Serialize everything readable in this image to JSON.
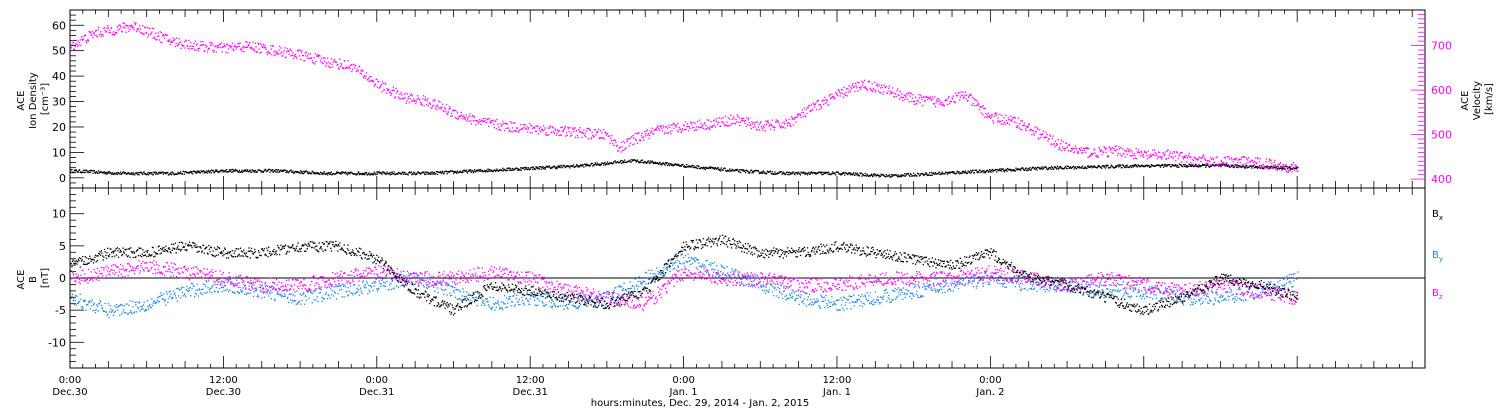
{
  "chart_data": [
    {
      "type": "scatter",
      "panel": "top",
      "ylabel_left": [
        "ACE",
        "Ion Density",
        "[cm⁻³]"
      ],
      "ylabel_right": [
        "ACE",
        "Velocity",
        "[km/s]"
      ],
      "ylim_left": [
        -4,
        66
      ],
      "ylim_right": [
        380,
        780
      ],
      "yticks_left": [
        0,
        10,
        20,
        30,
        40,
        50,
        60
      ],
      "yticks_right": [
        400,
        500,
        600,
        700
      ],
      "grid": false,
      "series": [
        {
          "axis": "left",
          "color": "#000000",
          "x_hours": [
            0,
            4,
            8,
            12,
            16,
            20,
            24,
            28,
            32,
            36,
            40,
            44,
            48,
            52,
            56,
            60,
            64,
            68,
            72,
            76,
            84,
            90,
            96
          ],
          "values": [
            3,
            2,
            2,
            3,
            3,
            2,
            2,
            2,
            3,
            4,
            5,
            7,
            5,
            3,
            2,
            2,
            1,
            2,
            3,
            4,
            5,
            5,
            4
          ]
        },
        {
          "axis": "right",
          "color": "#ff00ff",
          "x_hours": [
            0,
            2,
            5,
            8,
            10,
            12,
            14,
            16,
            18,
            20,
            22,
            24,
            26,
            28,
            30,
            32,
            34,
            36,
            38,
            40,
            42,
            43,
            44,
            46,
            48,
            50,
            52,
            54,
            56,
            58,
            60,
            62,
            64,
            66,
            68,
            70,
            72,
            74,
            76,
            78,
            80,
            82,
            84,
            86,
            88,
            90,
            92,
            94,
            96
          ],
          "values": [
            700,
            730,
            745,
            710,
            700,
            695,
            700,
            690,
            680,
            665,
            655,
            615,
            585,
            575,
            550,
            530,
            520,
            515,
            510,
            505,
            500,
            470,
            490,
            510,
            520,
            525,
            535,
            520,
            525,
            560,
            590,
            615,
            600,
            580,
            575,
            590,
            540,
            530,
            500,
            470,
            460,
            465,
            455,
            455,
            445,
            440,
            440,
            435,
            425
          ]
        }
      ]
    },
    {
      "type": "scatter",
      "panel": "bottom",
      "ylabel": [
        "ACE",
        "B",
        "[nT]"
      ],
      "ylim": [
        -14,
        14
      ],
      "yticks": [
        -10,
        -5,
        0,
        5,
        10
      ],
      "zero_line": true,
      "legend": "right",
      "legend_items": [
        {
          "label": "B",
          "sub": "x",
          "color": "#000000"
        },
        {
          "label": "B",
          "sub": "y",
          "color": "#1e88e5"
        },
        {
          "label": "B",
          "sub": "z",
          "color": "#ff00ff"
        }
      ],
      "series": [
        {
          "name": "Bx",
          "color": "#000000",
          "x_hours": [
            0,
            3,
            6,
            9,
            12,
            15,
            18,
            21,
            24,
            27,
            30,
            33,
            36,
            39,
            42,
            45,
            48,
            51,
            54,
            57,
            60,
            63,
            66,
            69,
            72,
            75,
            78,
            81,
            84,
            87,
            90,
            93,
            96
          ],
          "values": [
            2,
            4,
            4,
            5,
            4,
            4,
            5,
            5,
            3,
            -2,
            -5,
            -1,
            -2,
            -3,
            -4,
            -2,
            5,
            6,
            4,
            4,
            5,
            4,
            3,
            2,
            4,
            0,
            -1,
            -3,
            -5,
            -3,
            0,
            -1,
            -3
          ]
        },
        {
          "name": "By",
          "color": "#1e88e5",
          "x_hours": [
            0,
            3,
            6,
            9,
            12,
            15,
            18,
            21,
            24,
            27,
            30,
            33,
            36,
            39,
            42,
            45,
            48,
            51,
            54,
            57,
            60,
            63,
            66,
            69,
            72,
            75,
            78,
            81,
            84,
            87,
            90,
            93,
            96
          ],
          "values": [
            -3,
            -5,
            -4,
            -2,
            -1,
            -2,
            -3,
            -2,
            -1,
            0,
            -2,
            -4,
            -3,
            -4,
            -3,
            0,
            3,
            1,
            -1,
            -3,
            -4,
            -3,
            -2,
            -1,
            0,
            -1,
            -1,
            -2,
            -2,
            -3,
            -3,
            -2,
            0
          ]
        },
        {
          "name": "Bz",
          "color": "#ff00ff",
          "x_hours": [
            0,
            3,
            6,
            9,
            12,
            15,
            18,
            21,
            24,
            27,
            30,
            33,
            36,
            39,
            42,
            45,
            48,
            51,
            54,
            57,
            60,
            63,
            66,
            69,
            72,
            75,
            78,
            81,
            84,
            87,
            90,
            93,
            96
          ],
          "values": [
            0,
            1,
            2,
            1,
            0,
            -1,
            -1,
            0,
            1,
            0,
            0,
            1,
            0,
            -2,
            -3,
            -4,
            1,
            0,
            0,
            -1,
            -1,
            0,
            0,
            0,
            1,
            0,
            -1,
            0,
            -1,
            -2,
            -1,
            -2,
            -3
          ]
        }
      ]
    }
  ],
  "x_axis": {
    "label": "hours:minutes, Dec. 29, 2014 - Jan. 2, 2015",
    "range_hours": [
      0,
      106
    ],
    "ticks": [
      {
        "hour": 0,
        "time": "0:00",
        "date": "Dec.30"
      },
      {
        "hour": 12,
        "time": "12:00",
        "date": "Dec.30"
      },
      {
        "hour": 24,
        "time": "0:00",
        "date": "Dec.31"
      },
      {
        "hour": 36,
        "time": "12:00",
        "date": "Dec.31"
      },
      {
        "hour": 48,
        "time": "0:00",
        "date": "Jan. 1"
      },
      {
        "hour": 60,
        "time": "12:00",
        "date": "Jan. 1"
      },
      {
        "hour": 72,
        "time": "0:00",
        "date": "Jan. 2"
      }
    ]
  }
}
